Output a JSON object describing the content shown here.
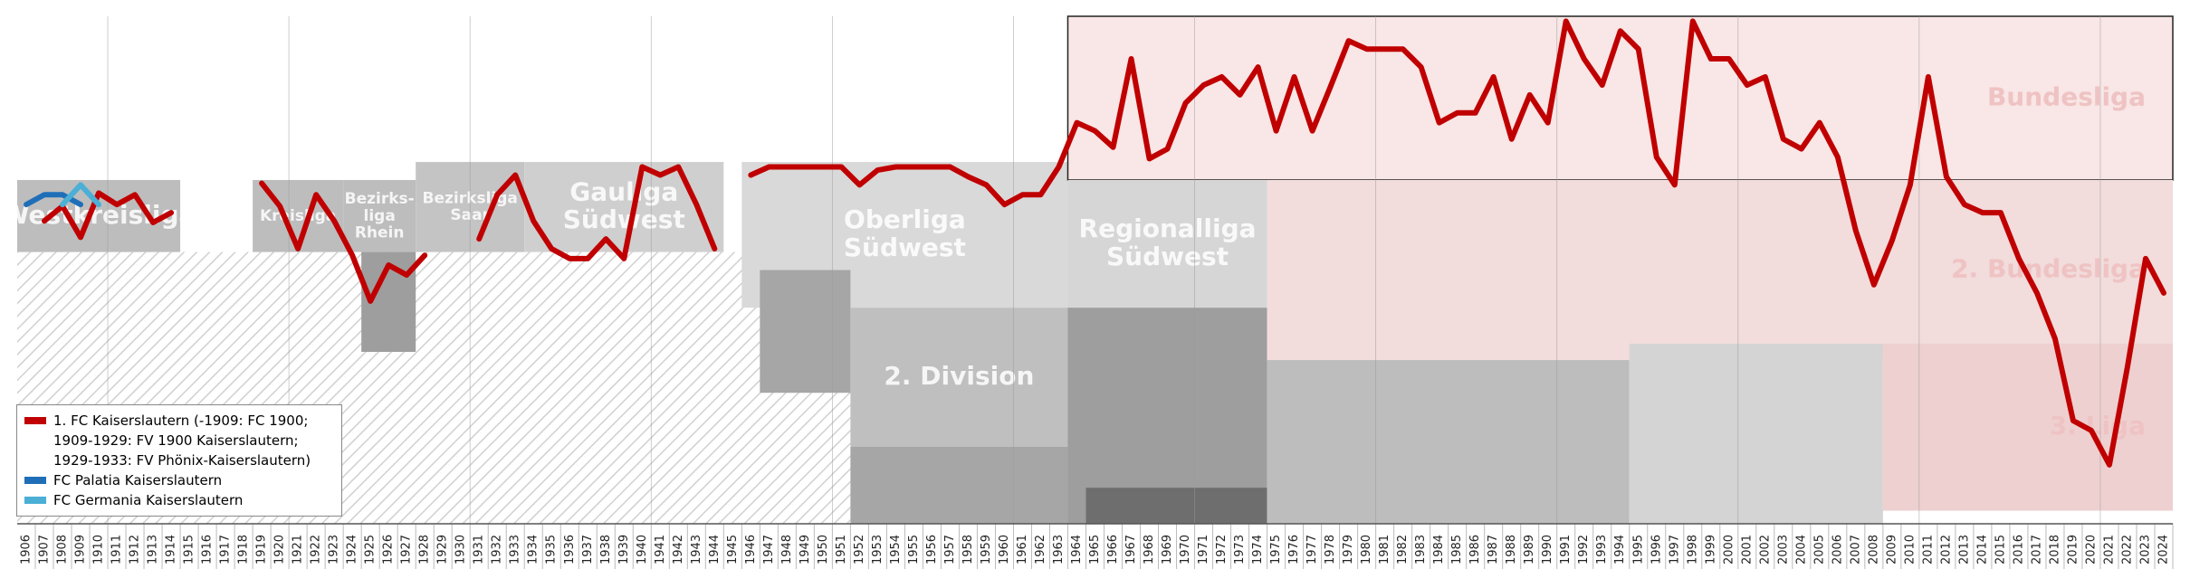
{
  "chart_data": {
    "type": "line",
    "x": [
      1906,
      1907,
      1908,
      1909,
      1910,
      1911,
      1912,
      1913,
      1914,
      1915,
      1916,
      1917,
      1918,
      1919,
      1920,
      1921,
      1922,
      1923,
      1924,
      1925,
      1926,
      1927,
      1928,
      1929,
      1930,
      1931,
      1932,
      1933,
      1934,
      1935,
      1936,
      1937,
      1938,
      1939,
      1940,
      1941,
      1942,
      1943,
      1944,
      1945,
      1946,
      1947,
      1948,
      1949,
      1950,
      1951,
      1952,
      1953,
      1954,
      1955,
      1956,
      1957,
      1958,
      1959,
      1960,
      1961,
      1962,
      1963,
      1964,
      1965,
      1966,
      1967,
      1968,
      1969,
      1970,
      1971,
      1972,
      1973,
      1974,
      1975,
      1976,
      1977,
      1978,
      1979,
      1980,
      1981,
      1982,
      1983,
      1984,
      1985,
      1986,
      1987,
      1988,
      1989,
      1990,
      1991,
      1992,
      1993,
      1994,
      1995,
      1996,
      1997,
      1998,
      1999,
      2000,
      2001,
      2002,
      2003,
      2004,
      2005,
      2006,
      2007,
      2008,
      2009,
      2010,
      2011,
      2012,
      2013,
      2014,
      2015,
      2016,
      2017,
      2018,
      2019,
      2020,
      2021,
      2022,
      2023,
      2024
    ],
    "xlim": [
      1905.5,
      2024.5
    ],
    "ylim": [
      3.1,
      0
    ],
    "series": [
      {
        "name": "1. FC Kaiserslautern (-1909: FC 1900; 1909-1929: FV 1900 Kaiserslautern; 1929-1933: FV Phönix-Kaiserslautern)",
        "color": "#c00000",
        "values": [
          null,
          1.25,
          1.16,
          1.35,
          1.08,
          1.15,
          1.09,
          1.26,
          1.2,
          null,
          null,
          null,
          null,
          1.02,
          1.16,
          1.42,
          1.09,
          1.25,
          1.46,
          1.74,
          1.52,
          1.58,
          1.46,
          null,
          null,
          1.36,
          1.09,
          0.97,
          1.25,
          1.42,
          1.48,
          1.48,
          1.36,
          1.48,
          0.92,
          0.97,
          0.92,
          1.15,
          1.42,
          null,
          0.97,
          0.92,
          0.92,
          0.92,
          0.92,
          0.92,
          1.03,
          0.94,
          0.92,
          0.92,
          0.92,
          0.92,
          0.98,
          1.03,
          1.15,
          1.09,
          1.09,
          0.92,
          0.65,
          0.7,
          0.8,
          0.26,
          0.87,
          0.81,
          0.53,
          0.42,
          0.37,
          0.48,
          0.31,
          0.7,
          0.37,
          0.7,
          0.43,
          0.15,
          0.2,
          0.2,
          0.2,
          0.31,
          0.65,
          0.59,
          0.59,
          0.37,
          0.75,
          0.48,
          0.65,
          0.03,
          0.26,
          0.42,
          0.09,
          0.2,
          0.86,
          1.03,
          0.03,
          0.26,
          0.26,
          0.42,
          0.37,
          0.75,
          0.81,
          0.65,
          0.86,
          1.31,
          1.64,
          1.37,
          1.03,
          0.37,
          0.98,
          1.15,
          1.2,
          1.2,
          1.48,
          1.69,
          1.97,
          2.47,
          2.53,
          2.74,
          2.14,
          1.48,
          1.69
        ]
      },
      {
        "name": "FC Palatia Kaiserslautern",
        "color": "#1f6fb8",
        "x": [
          1906,
          1907,
          1908,
          1909
        ],
        "values": [
          1.15,
          1.09,
          1.09,
          1.15
        ]
      },
      {
        "name": "FC Germania Kaiserslautern",
        "color": "#4bafd6",
        "x": [
          1908,
          1909,
          1910
        ],
        "values": [
          1.15,
          1.03,
          1.15
        ]
      }
    ],
    "regions": [
      {
        "x": [
          1905.5,
          1951.5
        ],
        "y": [
          1.44,
          3.1
        ],
        "color": "hatch"
      },
      {
        "x": [
          1905.5,
          1914.5
        ],
        "y": [
          1.0,
          1.44
        ],
        "color": "#bdbdbd",
        "label": "Westkreisliga"
      },
      {
        "x": [
          1918.5,
          1923.5
        ],
        "y": [
          1.0,
          1.44
        ],
        "color": "#bdbdbd",
        "label": "Kreisliga"
      },
      {
        "x": [
          1923.5,
          1927.5
        ],
        "y": [
          1.0,
          1.44
        ],
        "color": "#bdbdbd",
        "label": "Bezirks-\nliga\nRhein"
      },
      {
        "x": [
          1924.5,
          1927.5
        ],
        "y": [
          1.44,
          2.05
        ],
        "color": "#9e9e9e"
      },
      {
        "x": [
          1927.5,
          1933.5
        ],
        "y": [
          0.89,
          1.44
        ],
        "color": "#c4c4c4",
        "label": "Bezirksliga\nSaar"
      },
      {
        "x": [
          1933.5,
          1944.5
        ],
        "y": [
          0.89,
          1.44
        ],
        "color": "#cfcfcf",
        "label": "Gauliga\nSüdwest"
      },
      {
        "x": [
          1945.5,
          1963.5
        ],
        "y": [
          0.89,
          1.78
        ],
        "color": "#d9d9d9",
        "label": "Oberliga\nSüdwest"
      },
      {
        "x": [
          1946.5,
          1951.5
        ],
        "y": [
          1.55,
          2.3
        ],
        "color": "#a6a6a6"
      },
      {
        "x": [
          1951.5,
          1963.5
        ],
        "y": [
          1.78,
          2.63
        ],
        "color": "#bfbfbf",
        "label": "2. Division"
      },
      {
        "x": [
          1951.5,
          1963.5
        ],
        "y": [
          2.63,
          3.1
        ],
        "color": "#a6a6a6"
      },
      {
        "x": [
          1963.5,
          2024.5
        ],
        "y": [
          0,
          1.0
        ],
        "color": "#f9e6e6",
        "label": "Bundesliga"
      },
      {
        "x": [
          1963.5,
          1974.5
        ],
        "y": [
          1.0,
          1.78
        ],
        "color": "#d6d6d6",
        "label": "Regionalliga\nSüdwest"
      },
      {
        "x": [
          1963.5,
          1974.5
        ],
        "y": [
          1.78,
          3.1
        ],
        "color": "#9e9e9e"
      },
      {
        "x": [
          1964.5,
          1974.5
        ],
        "y": [
          2.88,
          3.1
        ],
        "color": "#6e6e6e"
      },
      {
        "x": [
          1974.5,
          2024.5
        ],
        "y": [
          1.0,
          2.1
        ],
        "color": "#f2dcdc",
        "label": "2. Bundesliga"
      },
      {
        "x": [
          1974.5,
          1994.5
        ],
        "y": [
          2.1,
          3.1
        ],
        "color": "#bdbdbd"
      },
      {
        "x": [
          1994.5,
          2008.5
        ],
        "y": [
          2.0,
          3.1
        ],
        "color": "#d4d4d4"
      },
      {
        "x": [
          2008.5,
          2024.5
        ],
        "y": [
          2.0,
          3.02
        ],
        "color": "#eed0d0",
        "label": "3. Liga"
      }
    ]
  }
}
